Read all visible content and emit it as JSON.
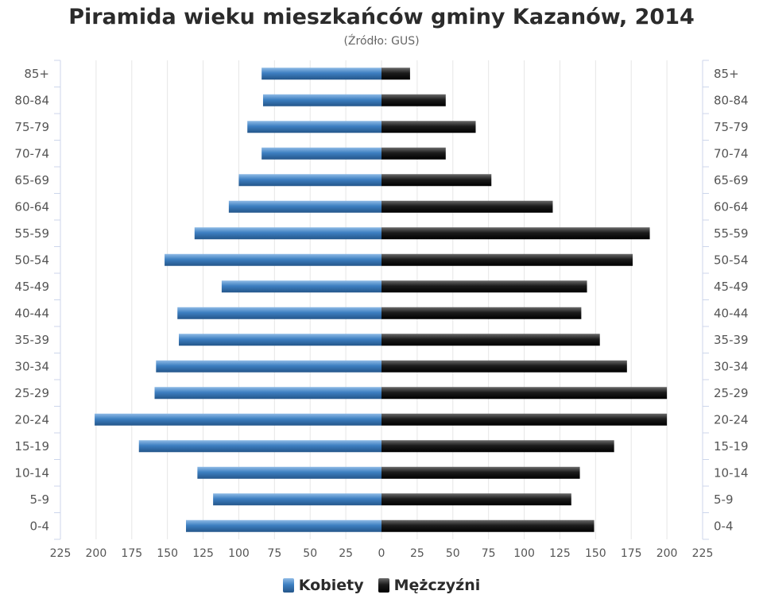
{
  "title": "Piramida wieku mieszkańców gminy Kazanów, 2014",
  "subtitle": "(Źródło: GUS)",
  "colors": {
    "female": "#3d7fc1",
    "male": "#1c1c1c",
    "grid": "#e6e6e6",
    "axis": "#ccd6eb"
  },
  "legend": {
    "female": "Kobiety",
    "male": "Mężczyźni"
  },
  "chart_data": {
    "type": "bar",
    "orientation": "horizontal-pyramid",
    "categories": [
      "85+",
      "80-84",
      "75-79",
      "70-74",
      "65-69",
      "60-64",
      "55-59",
      "50-54",
      "45-49",
      "40-44",
      "35-39",
      "30-34",
      "25-29",
      "20-24",
      "15-19",
      "10-14",
      "5-9",
      "0-4"
    ],
    "series": [
      {
        "name": "Kobiety",
        "side": "left",
        "values": [
          84,
          83,
          94,
          84,
          100,
          107,
          131,
          152,
          112,
          143,
          142,
          158,
          159,
          201,
          170,
          129,
          118,
          137
        ]
      },
      {
        "name": "Mężczyźni",
        "side": "right",
        "values": [
          20,
          45,
          66,
          45,
          77,
          120,
          188,
          176,
          144,
          140,
          153,
          172,
          200,
          200,
          163,
          139,
          133,
          149
        ]
      }
    ],
    "xlim": [
      -225,
      225
    ],
    "xticks": [
      225,
      200,
      175,
      150,
      125,
      100,
      75,
      50,
      25,
      0,
      25,
      50,
      75,
      100,
      125,
      150,
      175,
      200,
      225
    ],
    "grid": true,
    "legend_position": "bottom-center"
  }
}
